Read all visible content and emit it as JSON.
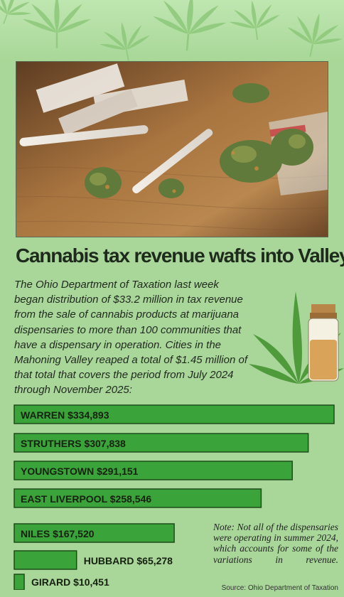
{
  "headline": "Cannabis tax revenue wafts into Valley",
  "intro": "The Ohio Department of Taxation last week began distribution of $33.2 million in tax revenue from the sale of cannabis products at marijuana dispensaries to more than 100 communities that have a dispensary in operation. Cities in the Mahoning Valley reaped a total of $1.45 million of that total that covers the period from July 2024 through November 2025:",
  "note": "Note: Not all of the dispensaries were operating in summer 2024, which accounts for some of the variations in revenue.",
  "source": "Source: Ohio Department of Taxation",
  "colors": {
    "bar_fill": "#3aa33a",
    "bar_border": "#1d4d1a",
    "background": "#a9d79a",
    "text": "#1e2a1c"
  },
  "chart_data": {
    "type": "bar",
    "orientation": "horizontal",
    "categories": [
      "WARREN",
      "STRUTHERS",
      "YOUNGSTOWN",
      "EAST LIVERPOOL",
      "NILES",
      "HUBBARD",
      "GIRARD"
    ],
    "values": [
      334893,
      307838,
      291151,
      258546,
      167520,
      65278,
      10451
    ],
    "labels": [
      "WARREN $334,893",
      "STRUTHERS $307,838",
      "YOUNGSTOWN $291,151",
      "EAST LIVERPOOL $258,546",
      "NILES $167,520",
      "HUBBARD $65,278",
      "GIRARD $10,451"
    ],
    "title": "",
    "xlabel": "",
    "ylabel": ""
  }
}
